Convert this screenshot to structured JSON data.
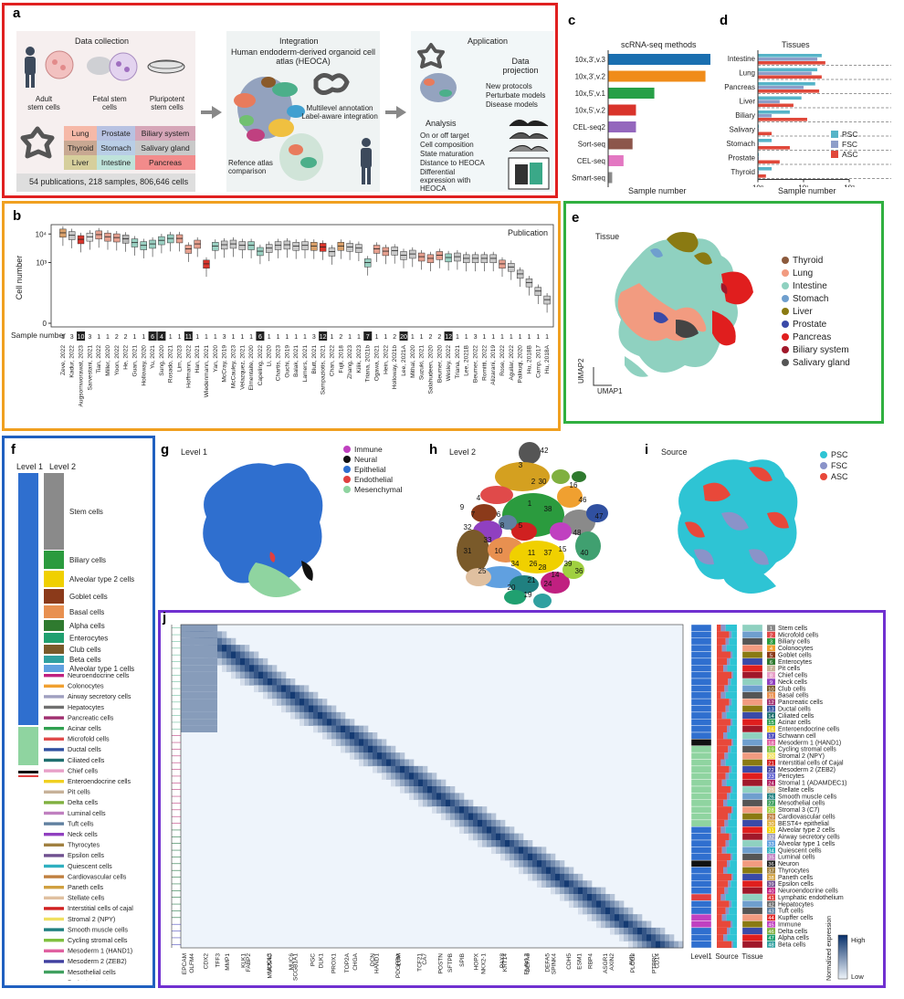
{
  "panel_a": {
    "letter": "a",
    "data_collection_title": "Data collection",
    "sources": [
      "Adult stem cells",
      "Fetal stem cells",
      "Pluripotent stem cells"
    ],
    "tissue_grid": [
      [
        "Lung",
        "Prostate",
        "Biliary system"
      ],
      [
        "Thyroid",
        "Stomach",
        "Salivary gland"
      ],
      [
        "Liver",
        "Intestine",
        "Pancreas"
      ]
    ],
    "footer": "54 publications, 218 samples, 806,646 cells",
    "integration_title": "Integration",
    "atlas_name": "Human endoderm-derived organoid cell atlas (HEOCA)",
    "annotation_text": "Multilevel annotation Label-aware integration",
    "reference_text": "Refence atlas comparison",
    "application_title": "Application",
    "projection_title": "Data projection",
    "projection_items": [
      "New protocols",
      "Perturbate models",
      "Disease models"
    ],
    "analysis_title": "Analysis",
    "analysis_items": [
      "On or off target",
      "Cell composition",
      "State maturation",
      "Distance to HEOCA",
      "Differential expression with HEOCA"
    ]
  },
  "panel_c": {
    "letter": "c",
    "chart_data": {
      "type": "bar",
      "title": "scRNA-seq methods",
      "xlabel": "Sample number",
      "xscale": "log",
      "xlim": [
        1,
        100
      ],
      "categories": [
        "10x,3',v.3",
        "10x,3',v.2",
        "10x,5',v.1",
        "10x,5',v.2",
        "CEL-seq2",
        "Sort-seq",
        "CEL-seq",
        "Smart-seq"
      ],
      "values": [
        100,
        80,
        8,
        3.5,
        3.5,
        3,
        2,
        1.2
      ],
      "colors": [
        "#1a6fb0",
        "#f08c1a",
        "#27a047",
        "#d9342b",
        "#9467bd",
        "#8c564b",
        "#e377c2",
        "#8a8a8a"
      ],
      "xticks": [
        "10⁰",
        "10¹",
        "10²"
      ]
    }
  },
  "panel_d": {
    "letter": "d",
    "chart_data": {
      "type": "bar",
      "title": "Tissues",
      "xlabel": "Sample number",
      "xscale": "log",
      "xlim": [
        1,
        100
      ],
      "categories": [
        "Intestine",
        "Lung",
        "Pancreas",
        "Liver",
        "Biliary",
        "Salivary",
        "Stomach",
        "Prostate",
        "Thyroid"
      ],
      "series": [
        {
          "name": "PSC",
          "color": "#56b4c8",
          "values": [
            25,
            20,
            18,
            9,
            5,
            1,
            2,
            1,
            2
          ]
        },
        {
          "name": "FSC",
          "color": "#8d9ec9",
          "values": [
            20,
            15,
            10,
            3,
            2,
            1,
            1,
            1,
            1
          ]
        },
        {
          "name": "ASC",
          "color": "#e0483a",
          "values": [
            30,
            25,
            22,
            6,
            12,
            2,
            5,
            3,
            1.5
          ]
        }
      ],
      "xticks": [
        "10⁰",
        "10¹",
        "10²"
      ]
    }
  },
  "panel_b": {
    "letter": "b",
    "chart_data": {
      "type": "box",
      "title": "Publication",
      "ylabel": "Cell number",
      "yscale": "log",
      "yticks": [
        "10⁴",
        "10³",
        "0"
      ],
      "row_label": "Sample number",
      "categories": [
        "Zeve, 2022",
        "Kadur, 2022",
        "Augsornworawat, 2023",
        "Sarvestani, 2021",
        "Tian, 2022",
        "Miller, 2020",
        "Yoon, 2022",
        "He, 2022",
        "Guan, 2021",
        "Holloway, 2020",
        "Yu, 2021",
        "Sung, 2020",
        "Rosado, 2021",
        "Lim, 2023",
        "Hoffmann, 2022",
        "Han, 2021",
        "Wiedenmann, 2021",
        "Yan, 2020",
        "McCray, 2019",
        "McCauley, 2023",
        "Velazquez, 2021",
        "Elmentaite, 2020",
        "Capeling, 2022",
        "Li, 2020",
        "Chartis, 2023",
        "Ouchi, 2019",
        "Balak, 2021",
        "Lamers, 2021",
        "Blutt, 2021",
        "Sampaziotis, 2021",
        "Chan, 2022",
        "Fujii, 2018",
        "Zhang, 2023",
        "Kilik, 2023",
        "Triana, 2021b",
        "Ogawa, 2021",
        "Hein, 2022",
        "Holloway, 2021b",
        "Lee, 2021A",
        "Mithal, 2020",
        "Suzuki, 2021",
        "Salahudeen, 2020",
        "Beumer, 2020",
        "Wesley, 2022",
        "Triana, 2021",
        "Lee, 2021B",
        "Beumer, 2022",
        "Romitti, 2022",
        "Alizarani, 2019",
        "Rose, 2022",
        "Aguilar, 2022",
        "Palikuqi, 2020",
        "Hu, 2018B",
        "Camp, 2017",
        "Hu, 2018A"
      ],
      "sample_numbers": [
        "1",
        "3",
        "10",
        "3",
        "1",
        "1",
        "2",
        "2",
        "1",
        "1",
        "6",
        "4",
        "1",
        "1",
        "11",
        "1",
        "1",
        "1",
        "3",
        "1",
        "1",
        "1",
        "6",
        "1",
        "1",
        "1",
        "1",
        "1",
        "3",
        "12",
        "1",
        "2",
        "1",
        "1",
        "7",
        "1",
        "1",
        "2",
        "20",
        "1",
        "1",
        "2",
        "2",
        "12",
        "1",
        "1",
        "3",
        "1",
        "1",
        "1",
        "1",
        "1",
        "1",
        "1",
        "1"
      ],
      "medians": [
        11000,
        9000,
        6500,
        8000,
        9500,
        8000,
        7500,
        6800,
        5000,
        4000,
        4500,
        6000,
        7000,
        7000,
        3000,
        4500,
        900,
        3800,
        4200,
        4500,
        4000,
        4000,
        2500,
        3200,
        4000,
        4200,
        3800,
        4000,
        3800,
        3500,
        2400,
        3800,
        3500,
        3200,
        1000,
        3000,
        2500,
        2600,
        1800,
        2000,
        1600,
        1400,
        1800,
        1500,
        1600,
        1400,
        1400,
        1400,
        1400,
        900,
        700,
        400,
        200,
        100,
        50
      ],
      "box_colors": [
        "#d9a06a",
        "#c9c9c9",
        "#d9342b",
        "#e0e0e0",
        "#e6a08f",
        "#e6a08f",
        "#e6a08f",
        "#b8b8b8",
        "#9ad0c2",
        "#9ad0c2",
        "#9ad0c2",
        "#9ad0c2",
        "#9ad0c2",
        "#e6a08f",
        "#e6a08f",
        "#e6a08f",
        "#d9342b",
        "#9ad0c2",
        "#c9c9c9",
        "#c9c9c9",
        "#c9c9c9",
        "#9ad0c2",
        "#9ad0c2",
        "#c9c9c9",
        "#c9c9c9",
        "#c9c9c9",
        "#c9c9c9",
        "#c9c9c9",
        "#d9a06a",
        "#d9342b",
        "#c9c9c9",
        "#d9a06a",
        "#c9c9c9",
        "#c9c9c9",
        "#9ad0c2",
        "#e6a08f",
        "#e6a08f",
        "#c9c9c9",
        "#c9c9c9",
        "#c9c9c9",
        "#e6a08f",
        "#e6a08f",
        "#e6a08f",
        "#9ad0c2",
        "#c9c9c9",
        "#c9c9c9",
        "#c9c9c9",
        "#c9c9c9",
        "#c9c9c9",
        "#e6a08f",
        "#c9c9c9",
        "#c9c9c9",
        "#c9c9c9",
        "#c9c9c9",
        "#c9c9c9"
      ]
    }
  },
  "panel_e": {
    "letter": "e",
    "title": "Tissue",
    "legend": [
      {
        "label": "Thyroid",
        "color": "#8c5a3c"
      },
      {
        "label": "Lung",
        "color": "#f29b80"
      },
      {
        "label": "Intestine",
        "color": "#8fd1c0"
      },
      {
        "label": "Stomach",
        "color": "#6f9fce"
      },
      {
        "label": "Liver",
        "color": "#8a7a12"
      },
      {
        "label": "Prostate",
        "color": "#3a4aa8"
      },
      {
        "label": "Pancreas",
        "color": "#e01e1e"
      },
      {
        "label": "Biliary system",
        "color": "#a0182a"
      },
      {
        "label": "Salivary gland",
        "color": "#555555"
      }
    ],
    "axis_y": "UMAP2",
    "axis_x": "UMAP1"
  },
  "panel_f": {
    "letter": "f",
    "level1_label": "Level 1",
    "level2_label": "Level 2",
    "level2_labels": [
      "Stem cells",
      "Biliary cells",
      "Alveolar type 2 cells",
      "Goblet cells",
      "Basal cells",
      "Alpha cells",
      "Enterocytes",
      "Club cells",
      "Beta cells",
      "Alveolar type 1 cells",
      "Neuroendocrine cells",
      "Colonocytes",
      "Airway secretory cells",
      "Hepatocytes",
      "Pancreatic cells",
      "Acinar cells",
      "Microfold cells",
      "Ductal cells",
      "Ciliated cells",
      "Chief cells",
      "Enteroendocrine cells",
      "Pit cells",
      "Delta cells",
      "Luminal cells",
      "Tuft cells",
      "Neck cells",
      "Thyrocytes",
      "Epsilon cells",
      "Quiescent cells",
      "Cardiovascular cells",
      "Paneth cells",
      "Stellate cells",
      "Interstitial cells of cajal",
      "Stromal 2 (NPY)",
      "Smooth muscle cells",
      "Cycling stromal cells",
      "Mesoderm 1 (HAND1)",
      "Mesoderm 2 (ZEB2)",
      "Mesothelial cells",
      "Pericytes",
      "Stromal 1 (ADAMDEC1)",
      "Stromal 3 (C7)",
      "Neuron",
      "Schwann cell",
      "Lymphatic endothelium"
    ]
  },
  "panel_g": {
    "letter": "g",
    "title": "Level 1",
    "legend": [
      {
        "label": "Immune",
        "color": "#c040c0"
      },
      {
        "label": "Neural",
        "color": "#111111"
      },
      {
        "label": "Epithelial",
        "color": "#2f6fcf"
      },
      {
        "label": "Endothelial",
        "color": "#e04040"
      },
      {
        "label": "Mesenchymal",
        "color": "#8fd4a0"
      }
    ]
  },
  "panel_h": {
    "letter": "h",
    "title": "Level 2",
    "cluster_labels": [
      "42",
      "3",
      "2",
      "30",
      "16",
      "4",
      "1",
      "46",
      "9",
      "7",
      "6",
      "38",
      "47",
      "32",
      "5",
      "33",
      "48",
      "31",
      "10",
      "11",
      "37",
      "15",
      "40",
      "34",
      "26",
      "28",
      "25",
      "21",
      "36",
      "39",
      "20",
      "19",
      "14",
      "24",
      "8"
    ]
  },
  "panel_i": {
    "letter": "i",
    "title": "Source",
    "legend": [
      {
        "label": "PSC",
        "color": "#2ec4d4"
      },
      {
        "label": "FSC",
        "color": "#8a93c9"
      },
      {
        "label": "ASC",
        "color": "#e8483a"
      }
    ]
  },
  "panel_j": {
    "letter": "j",
    "genes_row1": [
      "EPCAM",
      "CDX2",
      "MMP1",
      "FABP2",
      "MUC5AC",
      "MUC6",
      "PGC",
      "PROX1",
      "CHGA",
      "HAND1",
      "PDGFRA",
      "TCF21",
      "POSTN",
      "SPIB",
      "NKX2-1",
      "KRT14",
      "ELAVL3",
      "DEFA5",
      "CDH5",
      "RBP4",
      "AXIN2",
      "PLCG2",
      "PTPRC"
    ],
    "genes_row2": [
      "OLFM4",
      "TFF3",
      "KLK1",
      "MUC13",
      "SCGB1A1",
      "DLK1",
      "TOP2A",
      "DCN",
      "LUM",
      "CA7",
      "SFTPB",
      "HOPX",
      "PAX8",
      "DEFA6",
      "SPINK4",
      "ESM1",
      "ASGR1",
      "AVIL",
      "CD14"
    ],
    "col_labels": [
      "Level1",
      "Source",
      "Tissue"
    ],
    "colorbar_high": "High",
    "colorbar_low": "Low",
    "colorbar_title": "Normalized expression",
    "cell_types": [
      {
        "n": "1",
        "label": "Stem cells",
        "color": "#8a8a8a"
      },
      {
        "n": "2",
        "label": "Microfold cells",
        "color": "#e04a4a"
      },
      {
        "n": "3",
        "label": "Biliary cells",
        "color": "#2b9b3e"
      },
      {
        "n": "4",
        "label": "Colonocytes",
        "color": "#f0a030"
      },
      {
        "n": "5",
        "label": "Goblet cells",
        "color": "#8b3a1a"
      },
      {
        "n": "6",
        "label": "Enterocytes",
        "color": "#2f7a2f"
      },
      {
        "n": "7",
        "label": "Pit cells",
        "color": "#c7b299"
      },
      {
        "n": "8",
        "label": "Chief cells",
        "color": "#e8a0c8"
      },
      {
        "n": "9",
        "label": "Neck cells",
        "color": "#9040c0"
      },
      {
        "n": "10",
        "label": "Club cells",
        "color": "#7a5a2a"
      },
      {
        "n": "11",
        "label": "Basal cells",
        "color": "#e89050"
      },
      {
        "n": "12",
        "label": "Pancreatic cells",
        "color": "#a03070"
      },
      {
        "n": "13",
        "label": "Ductal cells",
        "color": "#3050a0"
      },
      {
        "n": "14",
        "label": "Ciliated cells",
        "color": "#207070"
      },
      {
        "n": "15",
        "label": "Acinar cells",
        "color": "#30a050"
      },
      {
        "n": "16",
        "label": "Enteroendocrine cells",
        "color": "#f0d020"
      },
      {
        "n": "17",
        "label": "Schwann cell",
        "color": "#5050c0"
      },
      {
        "n": "18",
        "label": "Mesoderm 1 (HAND1)",
        "color": "#e060a0"
      },
      {
        "n": "19",
        "label": "Cycling stromal cells",
        "color": "#80c040"
      },
      {
        "n": "20",
        "label": "Stromal 2 (NPY)",
        "color": "#f0e060"
      },
      {
        "n": "21",
        "label": "Interstitial cells of Cajal",
        "color": "#d02020"
      },
      {
        "n": "22",
        "label": "Mesoderm 2 (ZEB2)",
        "color": "#4040a0"
      },
      {
        "n": "23",
        "label": "Pericytes",
        "color": "#6060d0"
      },
      {
        "n": "24",
        "label": "Stromal 1 (ADAMDEC1)",
        "color": "#b02060"
      },
      {
        "n": "25",
        "label": "Stellate cells",
        "color": "#e0c0a0"
      },
      {
        "n": "26",
        "label": "Smooth muscle cells",
        "color": "#208080"
      },
      {
        "n": "27",
        "label": "Mesothelial cells",
        "color": "#40a060"
      },
      {
        "n": "28",
        "label": "Stromal 3 (C7)",
        "color": "#a0d040"
      },
      {
        "n": "29",
        "label": "Cardiovascular cells",
        "color": "#c08040"
      },
      {
        "n": "30",
        "label": "BEST4+ epithelial",
        "color": "#e0b040"
      },
      {
        "n": "31",
        "label": "Alveolar type 2 cells",
        "color": "#f0d000"
      },
      {
        "n": "32",
        "label": "Airway secretory cells",
        "color": "#a0a0c0"
      },
      {
        "n": "33",
        "label": "Alveolar type 1 cells",
        "color": "#60a0e0"
      },
      {
        "n": "34",
        "label": "Quiescent cells",
        "color": "#30b0c0"
      },
      {
        "n": "35",
        "label": "Luminal cells",
        "color": "#c080c0"
      },
      {
        "n": "36",
        "label": "Neuron",
        "color": "#202020"
      },
      {
        "n": "37",
        "label": "Thyrocytes",
        "color": "#a08040"
      },
      {
        "n": "38",
        "label": "Paneth cells",
        "color": "#d0a040"
      },
      {
        "n": "39",
        "label": "Epsilon cells",
        "color": "#705090"
      },
      {
        "n": "40",
        "label": "Neuroendocrine cells",
        "color": "#c02080"
      },
      {
        "n": "41",
        "label": "Lymphatic endothelium",
        "color": "#e04040"
      },
      {
        "n": "42",
        "label": "Hepatocytes",
        "color": "#707070"
      },
      {
        "n": "43",
        "label": "Tuft cells",
        "color": "#6080a0"
      },
      {
        "n": "44",
        "label": "Kupffer cells",
        "color": "#e03030"
      },
      {
        "n": "45",
        "label": "Immune",
        "color": "#c040c0"
      },
      {
        "n": "46",
        "label": "Delta cells",
        "color": "#80b040"
      },
      {
        "n": "47",
        "label": "Alpha cells",
        "color": "#20a070"
      },
      {
        "n": "48",
        "label": "Beta cells",
        "color": "#30a0a0"
      }
    ]
  }
}
